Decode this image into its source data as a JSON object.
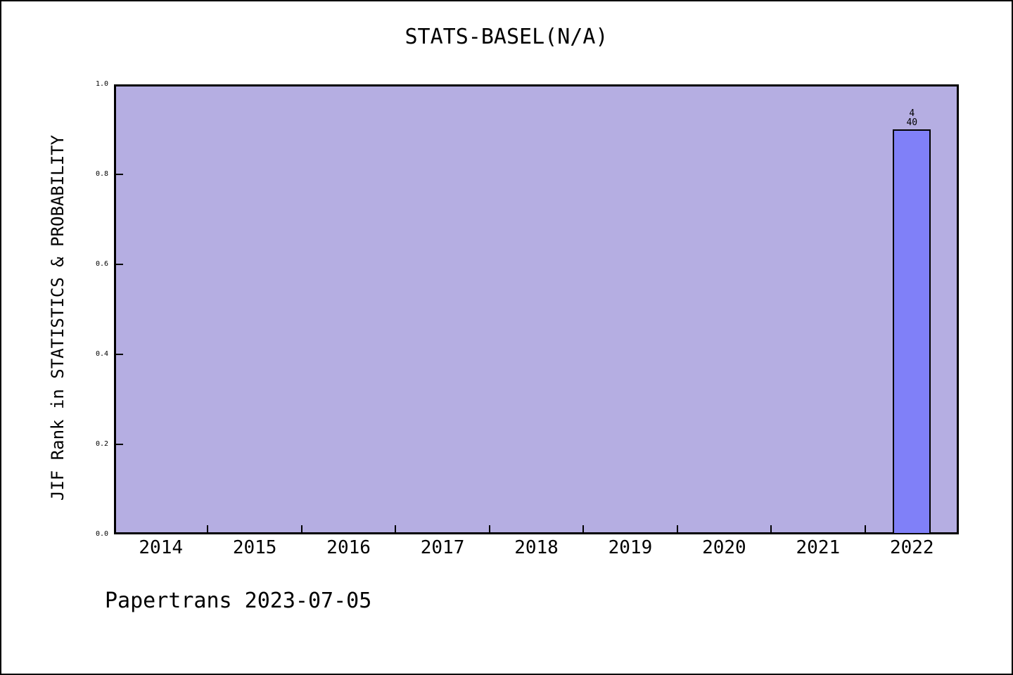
{
  "chart_data": {
    "type": "bar",
    "title": "STATS-BASEL(N/A)",
    "ylabel": "JIF Rank in STATISTICS & PROBABILITY",
    "xlabel": "",
    "categories": [
      "2014",
      "2015",
      "2016",
      "2017",
      "2018",
      "2019",
      "2020",
      "2021",
      "2022"
    ],
    "values": [
      null,
      null,
      null,
      null,
      null,
      null,
      null,
      null,
      0.9
    ],
    "annotations": [
      {
        "category": "2022",
        "lines": [
          "4",
          "40"
        ]
      }
    ],
    "ylim": [
      0.0,
      1.0
    ],
    "yticks": [
      0.0,
      0.2,
      0.4,
      0.6,
      0.8,
      1.0
    ],
    "ytick_decimals": 1,
    "grid": false,
    "legend_position": "none",
    "plot_background": "#b5aee2",
    "bar_color": "#8080f8",
    "bar_border_color": "#000000",
    "axis_color": "#000000",
    "text_color": "#000000"
  },
  "footer": {
    "caption": "Papertrans 2023-07-05"
  }
}
